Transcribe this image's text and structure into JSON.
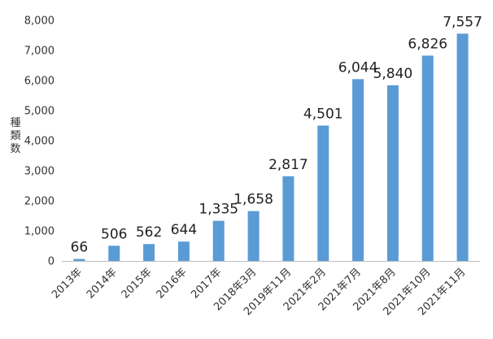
{
  "chart_data": {
    "type": "bar",
    "title": "",
    "xlabel": "",
    "ylabel": "種類数",
    "categories": [
      "2013年",
      "2014年",
      "2015年",
      "2016年",
      "2017年",
      "2018年3月",
      "2019年11月",
      "2021年2月",
      "2021年7月",
      "2021年8月",
      "2021年10月",
      "2021年11月"
    ],
    "values": [
      66,
      506,
      562,
      644,
      1335,
      1658,
      2817,
      4501,
      6044,
      5840,
      6826,
      7557
    ],
    "value_labels": [
      "66",
      "506",
      "562",
      "644",
      "1,335",
      "1,658",
      "2,817",
      "4,501",
      "6,044",
      "5,840",
      "6,826",
      "7,557"
    ],
    "ylim": [
      0,
      8000
    ],
    "yticks": [
      0,
      1000,
      2000,
      3000,
      4000,
      5000,
      6000,
      7000,
      8000
    ],
    "ytick_labels": [
      "0",
      "1,000",
      "2,000",
      "3,000",
      "4,000",
      "5,000",
      "6,000",
      "7,000",
      "8,000"
    ],
    "grid": false,
    "legend": "none",
    "bar_color": "#5b9bd5"
  }
}
